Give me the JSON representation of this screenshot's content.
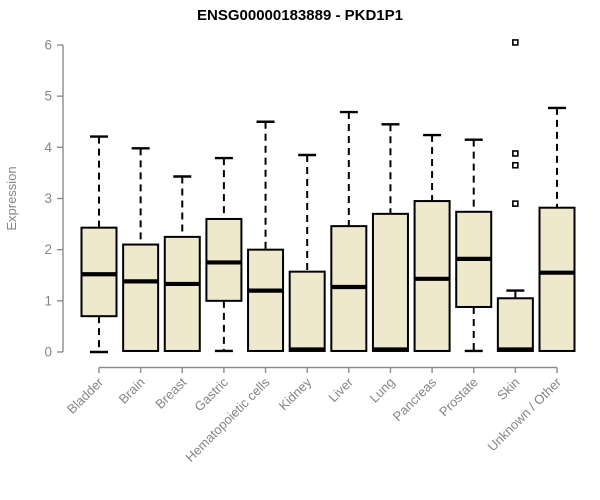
{
  "title": "ENSG00000183889 - PKD1P1",
  "colors": {
    "box_fill": "#EEE8CD",
    "box_border": "#000000",
    "median": "#000000",
    "whisker": "#000000",
    "axis": "#8C8C8C",
    "axis_text": "#858585",
    "title_text": "#000000",
    "background": "#FFFFFF"
  },
  "chart_data": {
    "type": "boxplot",
    "title": "ENSG00000183889 - PKD1P1",
    "xlabel": "",
    "ylabel": "Expression",
    "ylim": [
      0,
      6
    ],
    "yticks": [
      0,
      1,
      2,
      3,
      4,
      5,
      6
    ],
    "grid": false,
    "legend": null,
    "categories": [
      "Bladder",
      "Brain",
      "Breast",
      "Gastric",
      "Hematopoietic cells",
      "Kidney",
      "Liver",
      "Lung",
      "Pancreas",
      "Prostate",
      "Skin",
      "Unknown / Other"
    ],
    "series": [
      {
        "name": "Bladder",
        "whisker_low": 0.0,
        "q1": 0.7,
        "median": 1.52,
        "q3": 2.43,
        "whisker_high": 4.21,
        "outliers": []
      },
      {
        "name": "Brain",
        "whisker_low": 0.02,
        "q1": 0.02,
        "median": 1.38,
        "q3": 2.1,
        "whisker_high": 3.98,
        "outliers": []
      },
      {
        "name": "Breast",
        "whisker_low": 0.02,
        "q1": 0.02,
        "median": 1.33,
        "q3": 2.25,
        "whisker_high": 3.43,
        "outliers": []
      },
      {
        "name": "Gastric",
        "whisker_low": 0.02,
        "q1": 1.0,
        "median": 1.75,
        "q3": 2.6,
        "whisker_high": 3.79,
        "outliers": []
      },
      {
        "name": "Hematopoietic cells",
        "whisker_low": 0.02,
        "q1": 0.02,
        "median": 1.2,
        "q3": 2.0,
        "whisker_high": 4.5,
        "outliers": []
      },
      {
        "name": "Kidney",
        "whisker_low": 0.02,
        "q1": 0.02,
        "median": 0.05,
        "q3": 1.57,
        "whisker_high": 3.85,
        "outliers": []
      },
      {
        "name": "Liver",
        "whisker_low": 0.02,
        "q1": 0.02,
        "median": 1.27,
        "q3": 2.46,
        "whisker_high": 4.69,
        "outliers": []
      },
      {
        "name": "Lung",
        "whisker_low": 0.02,
        "q1": 0.02,
        "median": 0.05,
        "q3": 2.7,
        "whisker_high": 4.45,
        "outliers": []
      },
      {
        "name": "Pancreas",
        "whisker_low": 0.02,
        "q1": 0.02,
        "median": 1.43,
        "q3": 2.95,
        "whisker_high": 4.24,
        "outliers": []
      },
      {
        "name": "Prostate",
        "whisker_low": 0.02,
        "q1": 0.88,
        "median": 1.82,
        "q3": 2.74,
        "whisker_high": 4.15,
        "outliers": []
      },
      {
        "name": "Skin",
        "whisker_low": 0.02,
        "q1": 0.02,
        "median": 0.05,
        "q3": 1.05,
        "whisker_high": 1.2,
        "outliers": [
          2.9,
          3.65,
          3.88,
          6.05
        ]
      },
      {
        "name": "Unknown / Other",
        "whisker_low": 0.02,
        "q1": 0.02,
        "median": 1.55,
        "q3": 2.82,
        "whisker_high": 4.77,
        "outliers": []
      }
    ]
  }
}
